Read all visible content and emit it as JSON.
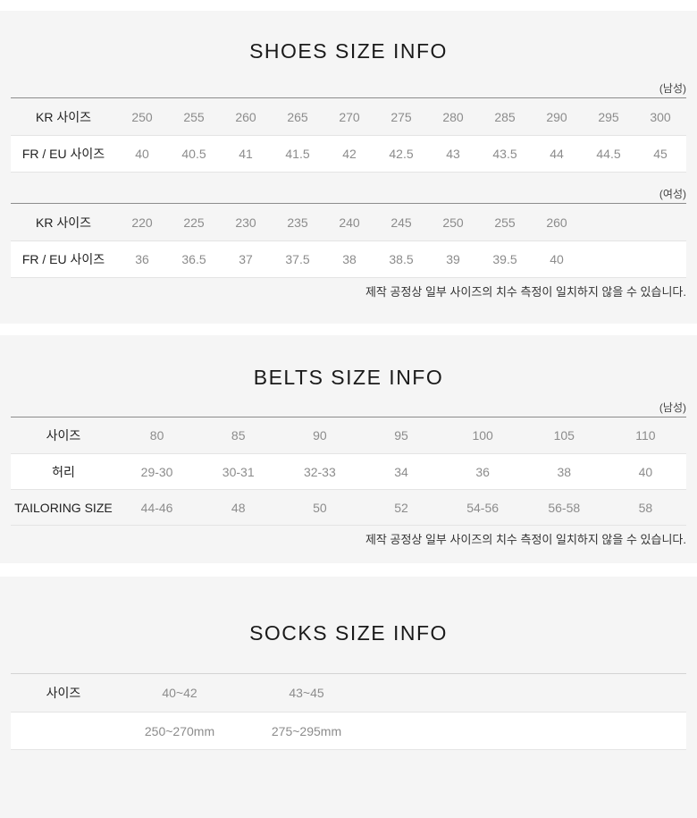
{
  "colors": {
    "section_bg": "#f5f5f5",
    "row_white": "#ffffff",
    "border_dark": "#8c8c8c",
    "border_light": "#e4e4e4",
    "title_text": "#1a1a1a",
    "label_text": "#222222",
    "value_text": "#8c8c8c",
    "note_text": "#333333"
  },
  "sections": [
    {
      "title": "SHOES SIZE INFO",
      "note": "제작 공정상 일부 사이즈의 치수 측정이 일치하지 않을 수 있습니다.",
      "tables": [
        {
          "gender": "(남성)",
          "columns": 11,
          "rows": [
            {
              "label": "KR 사이즈",
              "values": [
                "250",
                "255",
                "260",
                "265",
                "270",
                "275",
                "280",
                "285",
                "290",
                "295",
                "300"
              ]
            },
            {
              "label": "FR / EU 사이즈",
              "values": [
                "40",
                "40.5",
                "41",
                "41.5",
                "42",
                "42.5",
                "43",
                "43.5",
                "44",
                "44.5",
                "45"
              ]
            }
          ]
        },
        {
          "gender": "(여성)",
          "columns": 11,
          "rows": [
            {
              "label": "KR 사이즈",
              "values": [
                "220",
                "225",
                "230",
                "235",
                "240",
                "245",
                "250",
                "255",
                "260"
              ]
            },
            {
              "label": "FR / EU 사이즈",
              "values": [
                "36",
                "36.5",
                "37",
                "37.5",
                "38",
                "38.5",
                "39",
                "39.5",
                "40"
              ]
            }
          ]
        }
      ]
    },
    {
      "title": "BELTS SIZE INFO",
      "note": "제작 공정상 일부 사이즈의 치수 측정이 일치하지 않을 수 있습니다.",
      "tables": [
        {
          "gender": "(남성)",
          "columns": 7,
          "rows": [
            {
              "label": "사이즈",
              "values": [
                "80",
                "85",
                "90",
                "95",
                "100",
                "105",
                "110"
              ]
            },
            {
              "label": "허리",
              "values": [
                "29-30",
                "30-31",
                "32-33",
                "34",
                "36",
                "38",
                "40"
              ]
            },
            {
              "label": "TAILORING SIZE",
              "values": [
                "44-46",
                "48",
                "50",
                "52",
                "54-56",
                "56-58",
                "58"
              ]
            }
          ]
        }
      ]
    },
    {
      "title": "SOCKS SIZE INFO",
      "tables": [
        {
          "columns": 2,
          "rows": [
            {
              "label": "사이즈",
              "values": [
                "40~42",
                "43~45"
              ]
            },
            {
              "label": "",
              "values": [
                "250~270mm",
                "275~295mm"
              ]
            }
          ]
        }
      ]
    }
  ]
}
